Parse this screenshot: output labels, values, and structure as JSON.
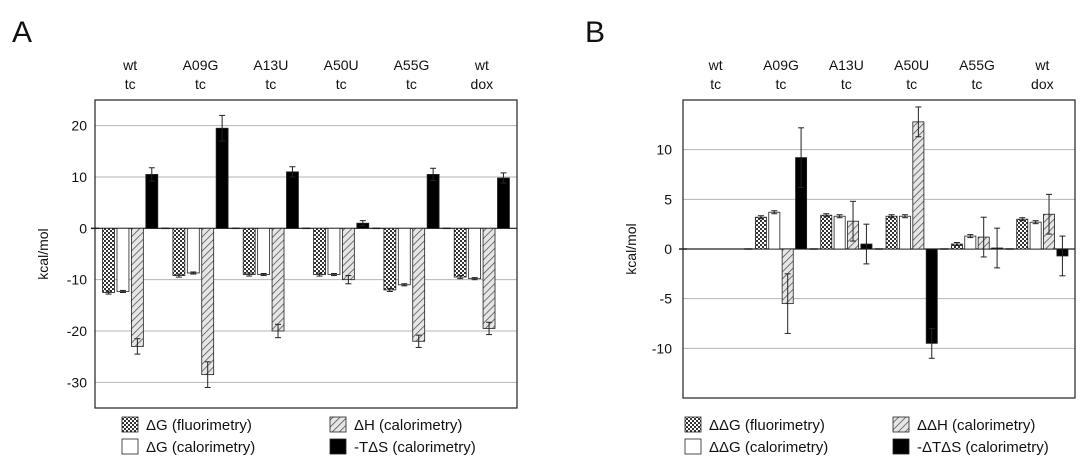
{
  "chart_data": [
    {
      "panel": "A",
      "type": "bar",
      "categories": [
        [
          "wt",
          "tc"
        ],
        [
          "A09G",
          "tc"
        ],
        [
          "A13U",
          "tc"
        ],
        [
          "A50U",
          "tc"
        ],
        [
          "A55G",
          "tc"
        ],
        [
          "wt",
          "dox"
        ]
      ],
      "ylabel": "kcal/mol",
      "ylim": [
        -35,
        25
      ],
      "yticks": [
        20,
        10,
        0,
        -10,
        -20,
        -30
      ],
      "grid": true,
      "legend": "bottom",
      "series": [
        {
          "name": "ΔG (fluorimetry)",
          "style": "checker",
          "values": [
            -12.5,
            -9.2,
            -9.0,
            -9.0,
            -12.0,
            -9.5
          ],
          "errors": [
            0.3,
            0.3,
            0.3,
            0.3,
            0.3,
            0.3
          ]
        },
        {
          "name": "ΔG (calorimetry)",
          "style": "white",
          "values": [
            -12.3,
            -8.7,
            -9.0,
            -9.0,
            -11.0,
            -9.8
          ],
          "errors": [
            0.2,
            0.2,
            0.2,
            0.2,
            0.2,
            0.2
          ]
        },
        {
          "name": "ΔH (calorimetry)",
          "style": "hatch",
          "values": [
            -23.0,
            -28.5,
            -20.0,
            -10.0,
            -22.0,
            -19.5
          ],
          "errors": [
            1.5,
            2.5,
            1.3,
            0.8,
            1.2,
            1.2
          ]
        },
        {
          "name": "-TΔS (calorimetry)",
          "style": "black",
          "values": [
            10.5,
            19.5,
            11.0,
            1.0,
            10.5,
            9.8
          ],
          "errors": [
            1.3,
            2.5,
            1.0,
            0.5,
            1.2,
            1.0
          ]
        }
      ]
    },
    {
      "panel": "B",
      "type": "bar",
      "categories": [
        [
          "wt",
          "tc"
        ],
        [
          "A09G",
          "tc"
        ],
        [
          "A13U",
          "tc"
        ],
        [
          "A50U",
          "tc"
        ],
        [
          "A55G",
          "tc"
        ],
        [
          "wt",
          "dox"
        ]
      ],
      "ylabel": "kcal/mol",
      "ylim": [
        -15,
        15
      ],
      "yticks": [
        10,
        5,
        0,
        -5,
        -10
      ],
      "grid": true,
      "legend": "bottom",
      "series": [
        {
          "name": "ΔΔG (fluorimetry)",
          "style": "checker",
          "values": [
            0,
            3.2,
            3.4,
            3.3,
            0.5,
            3.0
          ],
          "errors": [
            0,
            0.15,
            0.15,
            0.15,
            0.15,
            0.15
          ]
        },
        {
          "name": "ΔΔG (calorimetry)",
          "style": "white",
          "values": [
            0,
            3.7,
            3.3,
            3.3,
            1.3,
            2.7
          ],
          "errors": [
            0,
            0.15,
            0.15,
            0.15,
            0.15,
            0.15
          ]
        },
        {
          "name": "ΔΔH (calorimetry)",
          "style": "hatch",
          "values": [
            0,
            -5.5,
            2.8,
            12.8,
            1.2,
            3.5
          ],
          "errors": [
            0,
            3.0,
            2.0,
            1.5,
            2.0,
            2.0
          ]
        },
        {
          "name": "-ΔTΔS (calorimetry)",
          "style": "black",
          "values": [
            0,
            9.2,
            0.5,
            -9.5,
            0.1,
            -0.7
          ],
          "errors": [
            0,
            3.0,
            2.0,
            1.5,
            2.0,
            2.0
          ]
        }
      ]
    }
  ]
}
